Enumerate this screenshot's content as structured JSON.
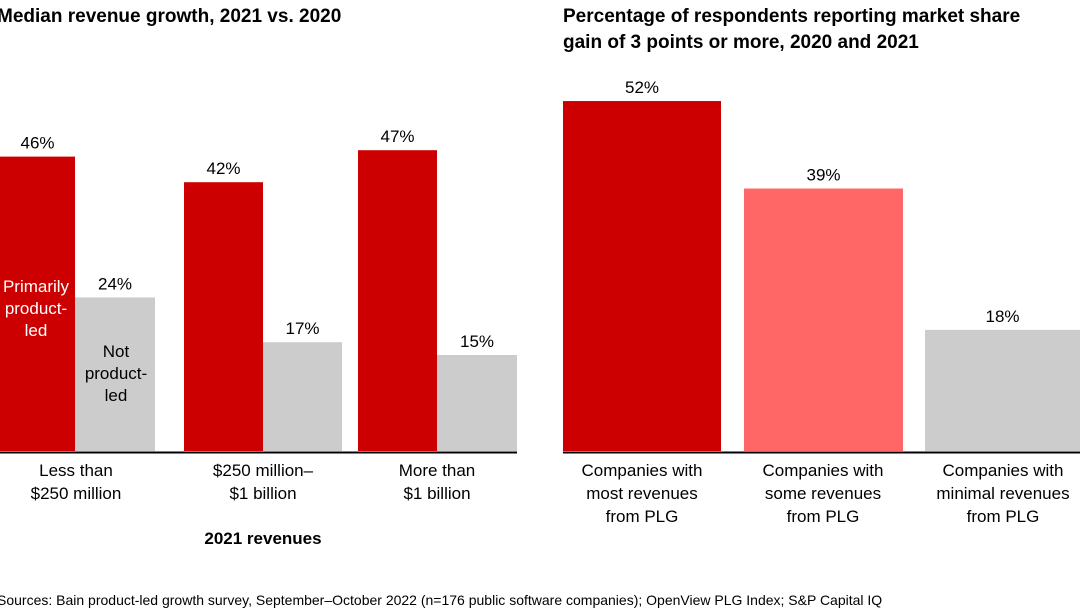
{
  "chart_data": [
    {
      "type": "bar",
      "title": "Median revenue growth, 2021 vs. 2020",
      "xlabel": "2021 revenues",
      "categories": [
        [
          "Less than",
          "$250 million"
        ],
        [
          "$250 million–",
          "$1 billion"
        ],
        [
          "More than",
          "$1 billion"
        ]
      ],
      "series": [
        {
          "name": "Primarily product-led",
          "name_lines": [
            "Primarily",
            "product-",
            "led"
          ],
          "color": "#cc0000",
          "values": [
            46,
            42,
            47
          ],
          "labels": [
            "46%",
            "42%",
            "47%"
          ]
        },
        {
          "name": "Not product-led",
          "name_lines": [
            "Not",
            "product-",
            "led"
          ],
          "color": "#cccccc",
          "values": [
            24,
            17,
            15
          ],
          "labels": [
            "24%",
            "17%",
            "15%"
          ]
        }
      ],
      "ylim": [
        0,
        50
      ],
      "grid": false
    },
    {
      "type": "bar",
      "title": [
        "Percentage of respondents reporting market share",
        "gain of 3 points or more, 2020 and 2021"
      ],
      "categories": [
        [
          "Companies with",
          "most revenues",
          "from PLG"
        ],
        [
          "Companies with",
          "some revenues",
          "from PLG"
        ],
        [
          "Companies with",
          "minimal revenues",
          "from PLG"
        ]
      ],
      "values": [
        52,
        39,
        18
      ],
      "labels": [
        "52%",
        "39%",
        "18%"
      ],
      "colors": [
        "#cc0000",
        "#ff6666",
        "#cccccc"
      ],
      "ylim": [
        0,
        55
      ],
      "grid": false
    }
  ],
  "footer": {
    "sources": "Sources: Bain product-led growth survey, September–October 2022 (n=176 public software companies); OpenView PLG Index; S&P Capital IQ"
  }
}
